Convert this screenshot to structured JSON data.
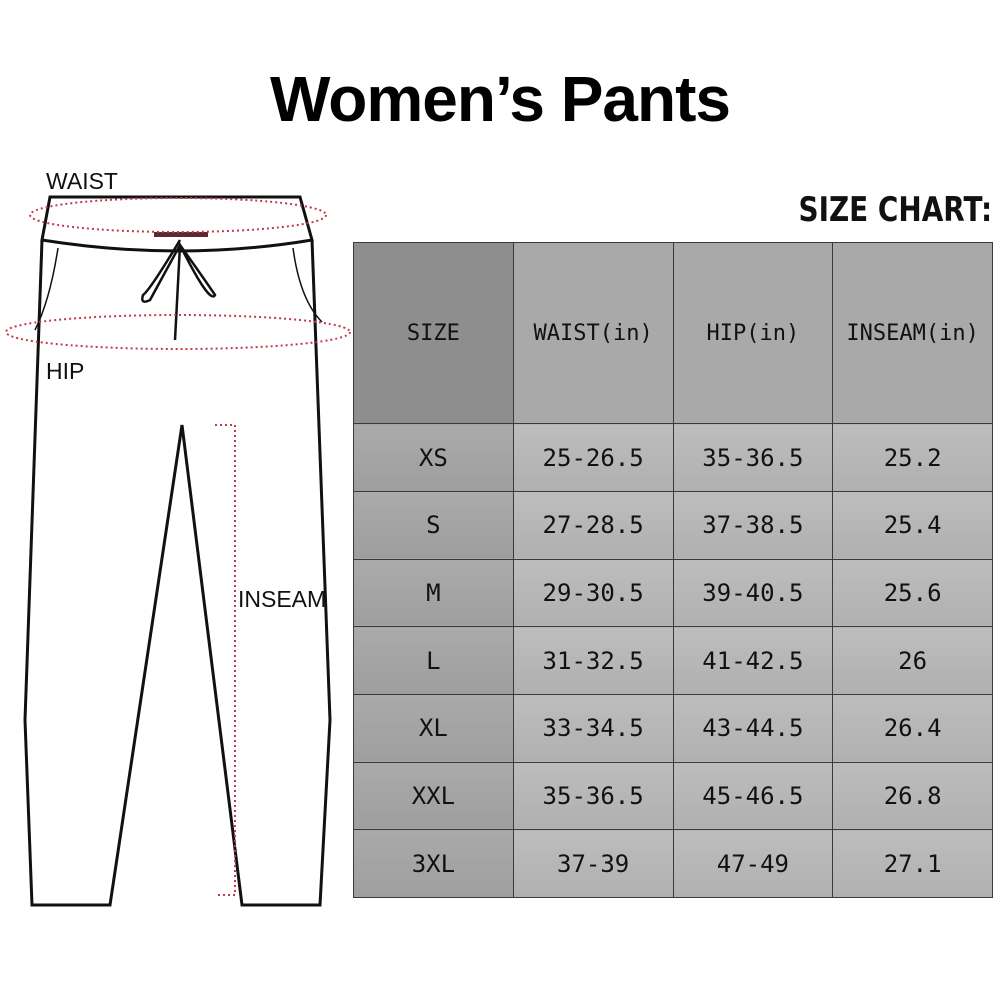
{
  "title": "Women’s Pants",
  "size_chart_label": "SIZE CHART:",
  "diagram": {
    "waist": "WAIST",
    "hip": "HIP",
    "inseam": "INSEAM"
  },
  "table": {
    "headers": [
      "SIZE",
      "WAIST(in)",
      "HIP(in)",
      "INSEAM(in)"
    ],
    "rows": [
      [
        "XS",
        "25-26.5",
        "35-36.5",
        "25.2"
      ],
      [
        "S",
        "27-28.5",
        "37-38.5",
        "25.4"
      ],
      [
        "M",
        "29-30.5",
        "39-40.5",
        "25.6"
      ],
      [
        "L",
        "31-32.5",
        "41-42.5",
        "26"
      ],
      [
        "XL",
        "33-34.5",
        "43-44.5",
        "26.4"
      ],
      [
        "XXL",
        "35-36.5",
        "45-46.5",
        "26.8"
      ],
      [
        "3XL",
        "37-39",
        "47-49",
        "27.1"
      ]
    ]
  }
}
